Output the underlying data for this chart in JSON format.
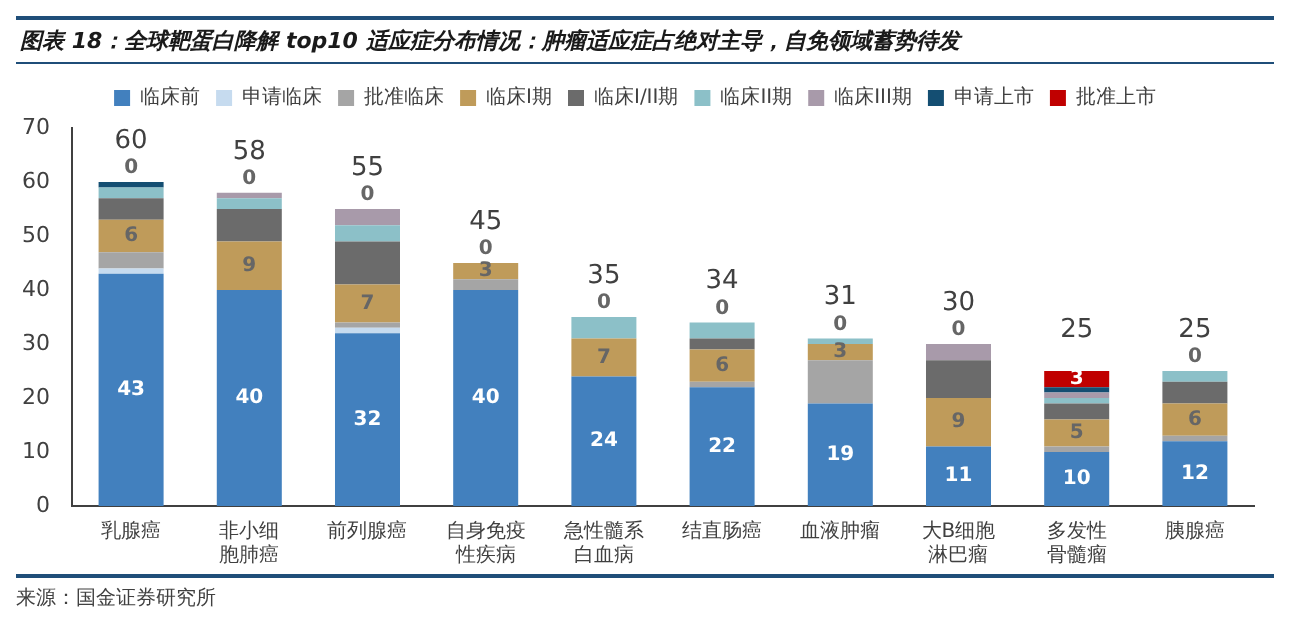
{
  "chart_data": {
    "type": "bar",
    "stacked": true,
    "title": "图表 18：全球靶蛋白降解 top10 适应症分布情况：肿瘤适应症占绝对主导，自免领域蓄势待发",
    "categories": [
      "乳腺癌",
      "非小细胞肺癌",
      "前列腺癌",
      "自身免疫性疾病",
      "急性髓系白血病",
      "结直肠癌",
      "血液肿瘤",
      "大B细胞淋巴瘤",
      "多发性骨髓瘤",
      "胰腺癌"
    ],
    "series": [
      {
        "name": "临床前",
        "color": "#4280be",
        "values": [
          43,
          40,
          32,
          40,
          24,
          22,
          19,
          11,
          10,
          12
        ],
        "value_labels": [
          "43",
          "40",
          "32",
          "40",
          "24",
          "22",
          "19",
          "11",
          "10",
          "12"
        ]
      },
      {
        "name": "申请临床",
        "color": "#c6dbef",
        "values": [
          1,
          null,
          1,
          null,
          null,
          null,
          null,
          null,
          null,
          null
        ]
      },
      {
        "name": "批准临床",
        "color": "#a5a5a5",
        "values": [
          3,
          null,
          1,
          2,
          null,
          1,
          8,
          null,
          1,
          1
        ]
      },
      {
        "name": "临床I期",
        "color": "#bf9b5a",
        "values": [
          6,
          9,
          7,
          3,
          7,
          6,
          3,
          9,
          5,
          6
        ],
        "value_labels": [
          "6",
          "9",
          "7",
          "3",
          "7",
          "6",
          "3",
          "9",
          "5",
          "6"
        ]
      },
      {
        "name": "临床I/II期",
        "color": "#6b6b6b",
        "values": [
          4,
          6,
          8,
          null,
          null,
          2,
          null,
          7,
          3,
          4
        ]
      },
      {
        "name": "临床II期",
        "color": "#8cc0c8",
        "values": [
          2,
          2,
          3,
          null,
          4,
          3,
          1,
          null,
          1,
          2
        ]
      },
      {
        "name": "临床III期",
        "color": "#a89aaa",
        "values": [
          null,
          1,
          3,
          null,
          null,
          null,
          null,
          3,
          1,
          null
        ]
      },
      {
        "name": "申请上市",
        "color": "#144e72",
        "values": [
          1,
          null,
          null,
          null,
          null,
          null,
          null,
          null,
          1,
          null
        ]
      },
      {
        "name": "批准上市",
        "color": "#c00000",
        "values": [
          0,
          0,
          0,
          0,
          0,
          0,
          0,
          0,
          3,
          0
        ],
        "value_labels": [
          "0",
          "0",
          "0",
          "0",
          "0",
          "0",
          "0",
          "0",
          "3",
          "0"
        ]
      }
    ],
    "totals": [
      "60",
      "58",
      "55",
      "45",
      "35",
      "34",
      "31",
      "30",
      "25",
      "25"
    ],
    "ylim": [
      0,
      70
    ],
    "yticks": [
      0,
      10,
      20,
      30,
      40,
      50,
      60,
      70
    ],
    "grid": false,
    "legend": "top",
    "annotations": [
      "来源：国金证券研究所"
    ]
  }
}
